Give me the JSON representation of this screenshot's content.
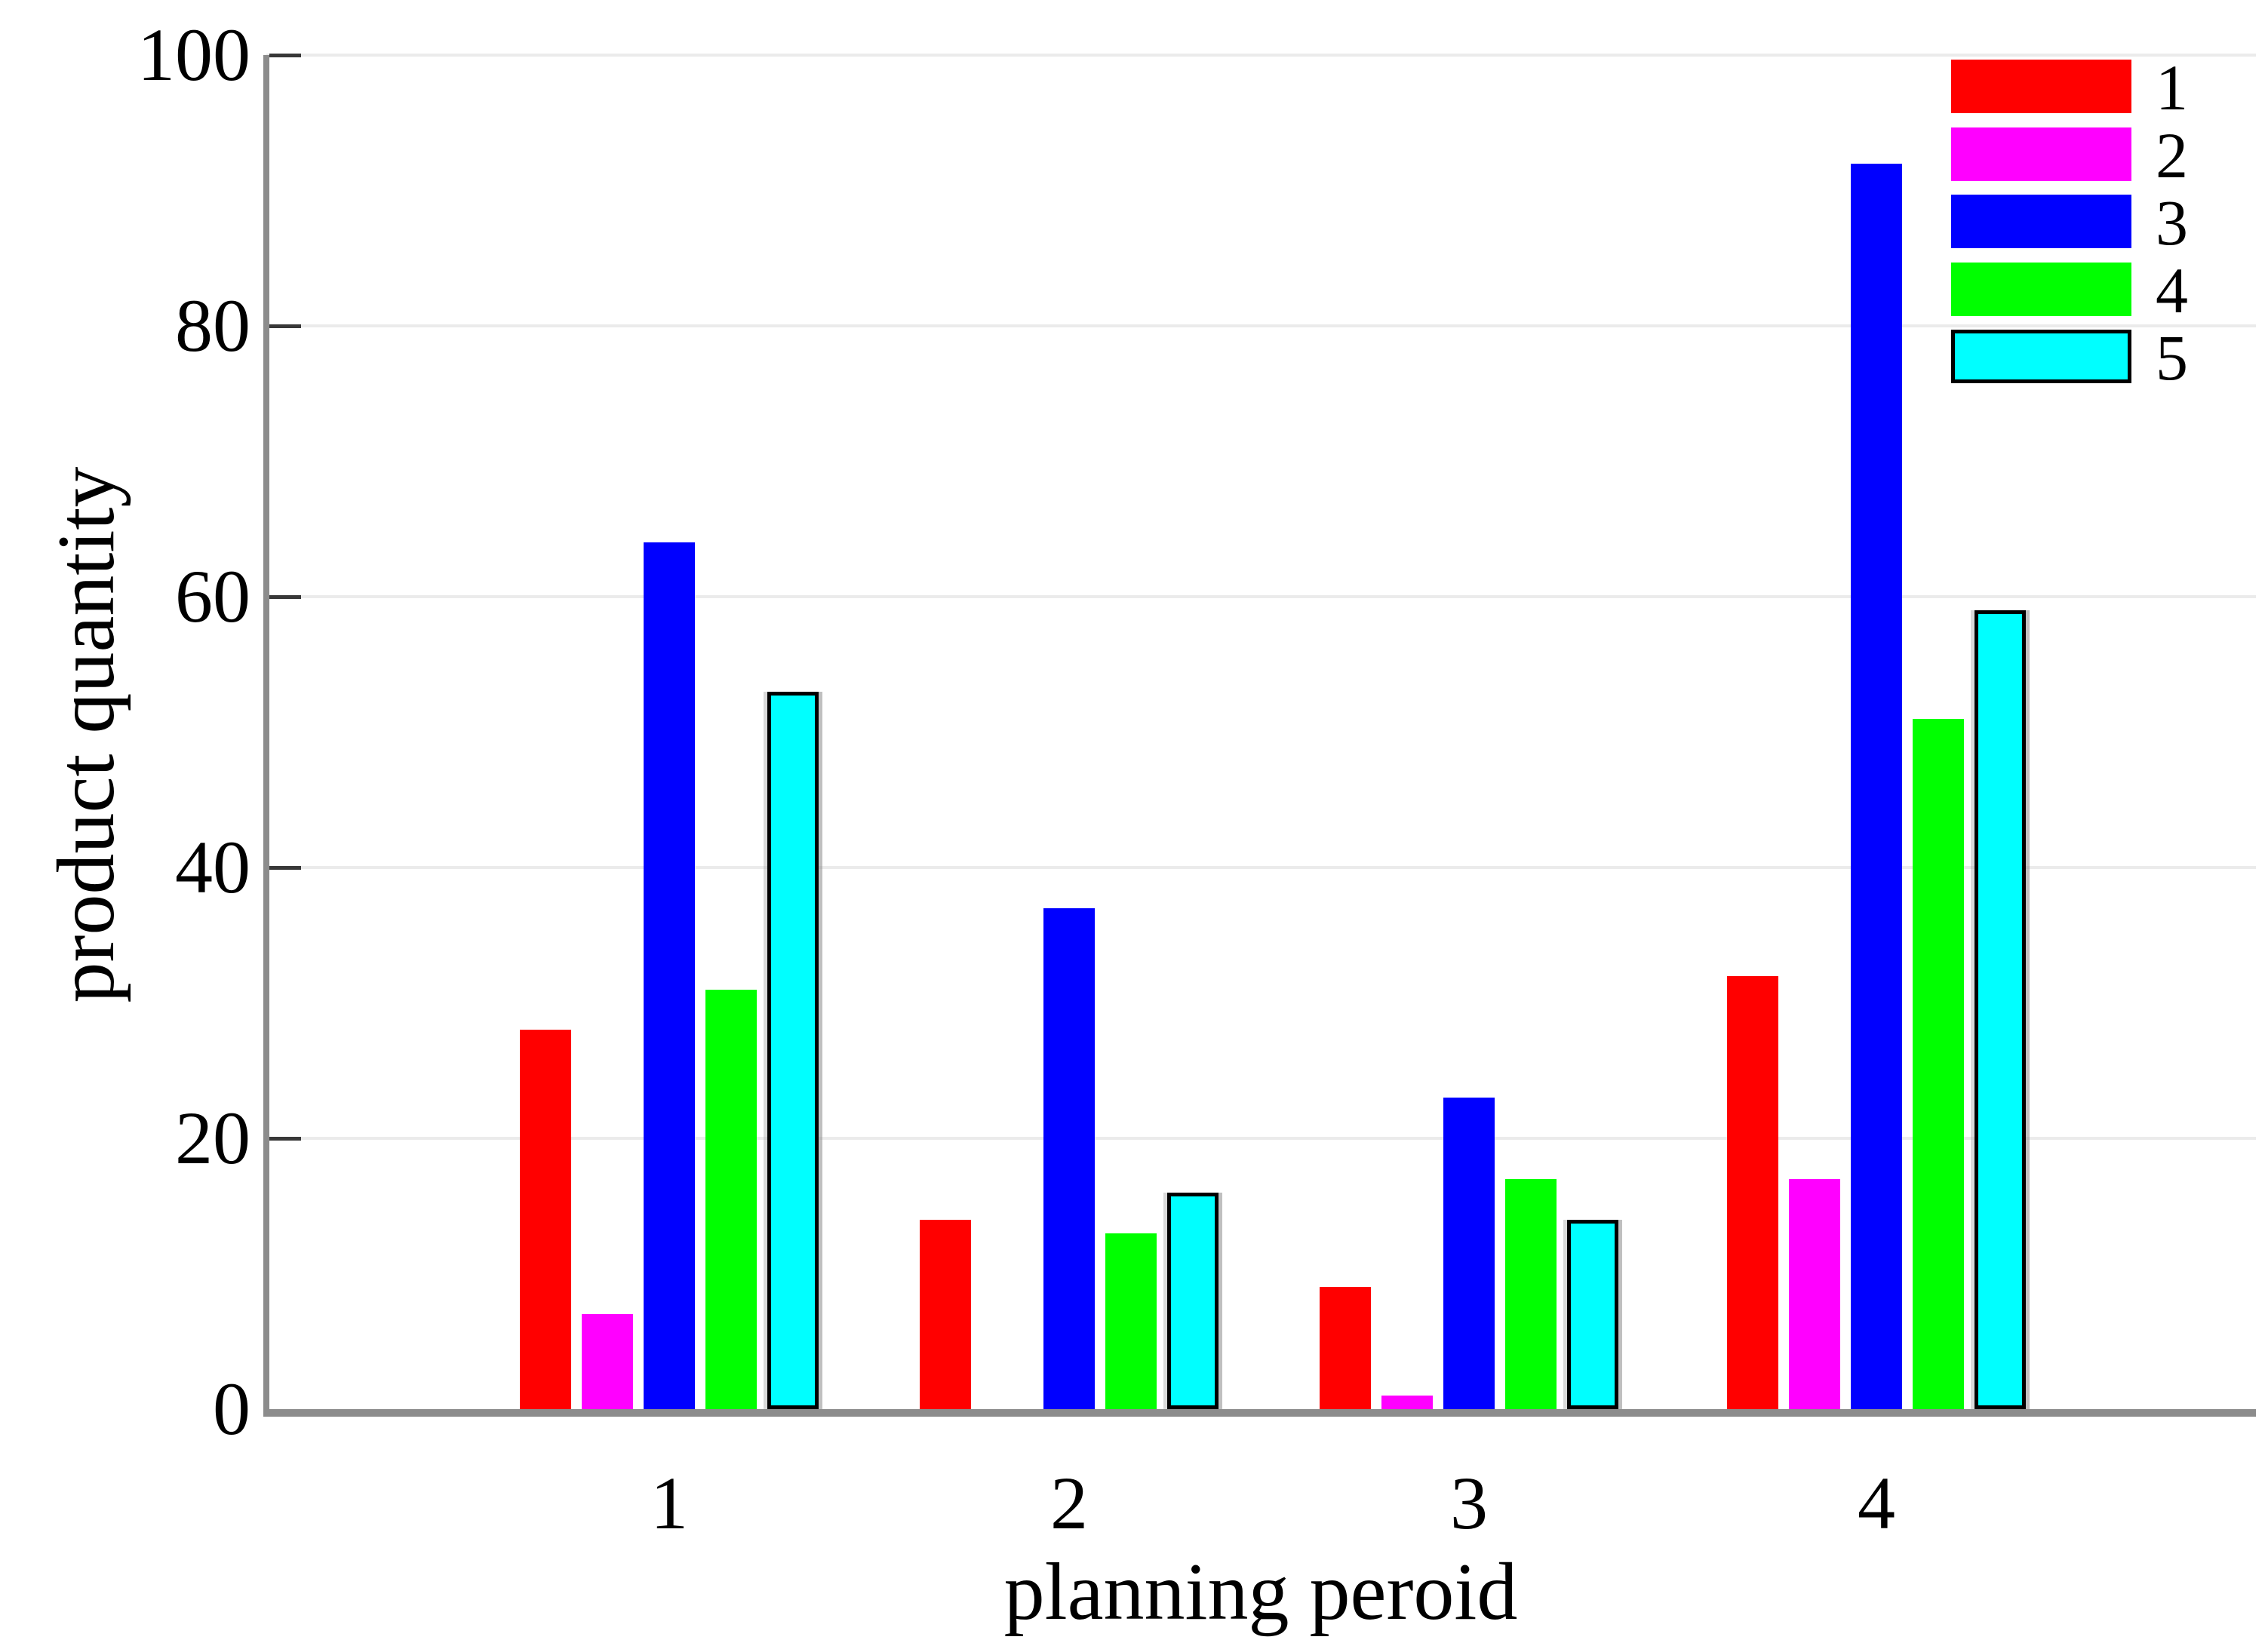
{
  "chart_data": {
    "type": "bar",
    "title": "",
    "xlabel": "planning peroid",
    "ylabel": "product quantity",
    "categories": [
      "1",
      "2",
      "3",
      "4"
    ],
    "series": [
      {
        "name": "1",
        "color": "#ff0000",
        "values": [
          28,
          14,
          9,
          32
        ]
      },
      {
        "name": "2",
        "color": "#ff00ff",
        "values": [
          7,
          0,
          1,
          17
        ]
      },
      {
        "name": "3",
        "color": "#0000ff",
        "values": [
          64,
          37,
          23,
          92
        ]
      },
      {
        "name": "4",
        "color": "#00ff00",
        "values": [
          31,
          13,
          17,
          51
        ]
      },
      {
        "name": "5",
        "color": "#00ffff",
        "values": [
          53,
          16,
          14,
          59
        ],
        "edge_color": "#000000"
      }
    ],
    "ylim": [
      0,
      100
    ],
    "yticks": [
      0,
      20,
      40,
      60,
      80,
      100
    ],
    "grid": true,
    "legend_position": "top-right",
    "legend_labels": [
      "1",
      "2",
      "3",
      "4",
      "5"
    ]
  }
}
